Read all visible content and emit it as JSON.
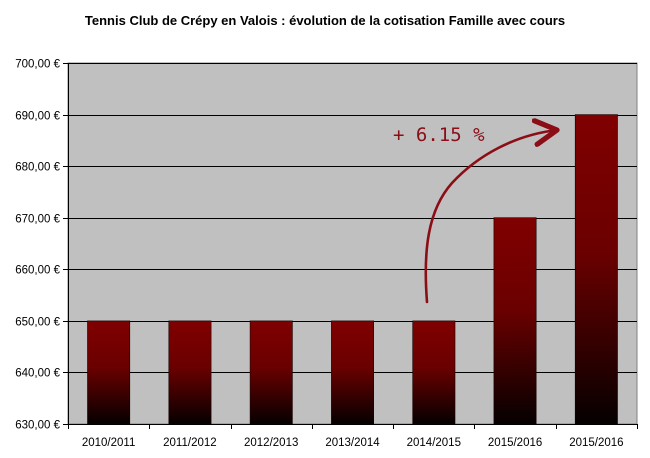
{
  "chart_data": {
    "type": "bar",
    "title": "Tennis Club de Crépy en Valois : évolution de la cotisation Famille avec cours",
    "categories": [
      "2010/2011",
      "2011/2012",
      "2012/2013",
      "2013/2014",
      "2014/2015",
      "2015/2016",
      "2015/2016"
    ],
    "values": [
      650,
      650,
      650,
      650,
      650,
      670,
      690
    ],
    "ylim": [
      630,
      700
    ],
    "yticks": [
      630,
      640,
      650,
      660,
      670,
      680,
      690,
      700
    ],
    "ytick_labels": [
      "630,00 €",
      "640,00 €",
      "650,00 €",
      "660,00 €",
      "670,00 €",
      "680,00 €",
      "690,00 €",
      "700,00 €"
    ],
    "grid": true,
    "annotation": "+ 6.15 %",
    "colors": {
      "plot_background": "#c0c0c0",
      "bar_top": "#800000",
      "bar_bottom": "#050000",
      "annotation": "#8b0e16"
    }
  }
}
